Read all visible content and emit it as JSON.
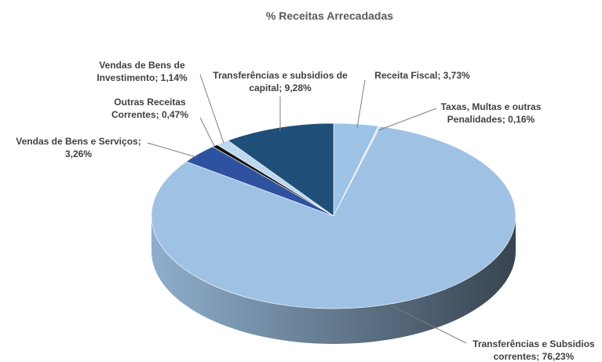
{
  "chart_data": {
    "type": "pie",
    "title": "% Receitas Arrecadadas",
    "values": [
      3.73,
      0.16,
      76.23,
      3.26,
      0.47,
      1.14,
      9.28
    ],
    "value_labels": [
      "Receita Fiscal; 3,73%",
      "Taxas, Multas e outras Penalidades; 0,16%",
      "Transferências e Subsidios correntes; 76,23%",
      "Vendas de Bens e Serviços; 3,26%",
      "Outras Receitas Correntes; 0,47%",
      "Vendas de Bens de Investimento; 1,14%",
      "Transferências e subsidios de capital; 9,28%"
    ],
    "colors": [
      "#9dc3e6",
      "#dfe9f5",
      "#9fc2e4",
      "#2f52a0",
      "#111111",
      "#bdd7ee",
      "#1f4e79"
    ]
  }
}
